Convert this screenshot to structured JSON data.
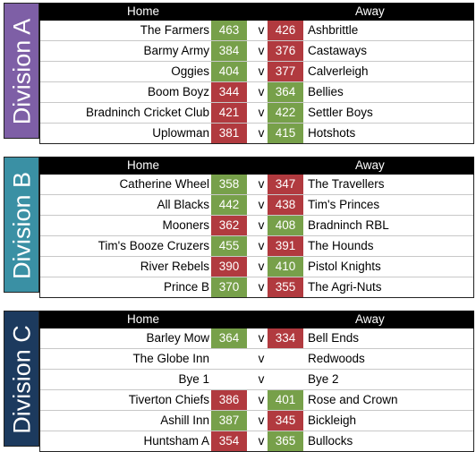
{
  "header": {
    "home": "Home",
    "away": "Away"
  },
  "divisions": [
    {
      "name": "Division A",
      "color": "#7e5fa6",
      "matches": [
        {
          "home": "The Farmers",
          "home_score": "463",
          "vs": "v",
          "away_score": "426",
          "away": "Ashbrittle",
          "home_result": "win",
          "away_result": "lose"
        },
        {
          "home": "Barmy Army",
          "home_score": "384",
          "vs": "v",
          "away_score": "376",
          "away": "Castaways",
          "home_result": "win",
          "away_result": "lose"
        },
        {
          "home": "Oggies",
          "home_score": "404",
          "vs": "v",
          "away_score": "377",
          "away": "Calverleigh",
          "home_result": "win",
          "away_result": "lose"
        },
        {
          "home": "Boom Boyz",
          "home_score": "344",
          "vs": "v",
          "away_score": "364",
          "away": "Bellies",
          "home_result": "lose",
          "away_result": "win"
        },
        {
          "home": "Bradninch Cricket Club",
          "home_score": "421",
          "vs": "v",
          "away_score": "422",
          "away": "Settler Boys",
          "home_result": "lose",
          "away_result": "win"
        },
        {
          "home": "Uplowman",
          "home_score": "381",
          "vs": "v",
          "away_score": "415",
          "away": "Hotshots",
          "home_result": "lose",
          "away_result": "win"
        }
      ]
    },
    {
      "name": "Division B",
      "color": "#3a90a4",
      "matches": [
        {
          "home": "Catherine Wheel",
          "home_score": "358",
          "vs": "v",
          "away_score": "347",
          "away": "The Travellers",
          "home_result": "win",
          "away_result": "lose"
        },
        {
          "home": "All Blacks",
          "home_score": "442",
          "vs": "v",
          "away_score": "438",
          "away": "Tim's Princes",
          "home_result": "win",
          "away_result": "lose"
        },
        {
          "home": "Mooners",
          "home_score": "362",
          "vs": "v",
          "away_score": "408",
          "away": "Bradninch RBL",
          "home_result": "lose",
          "away_result": "win"
        },
        {
          "home": "Tim's Booze Cruzers",
          "home_score": "455",
          "vs": "v",
          "away_score": "391",
          "away": "The Hounds",
          "home_result": "win",
          "away_result": "lose"
        },
        {
          "home": "River Rebels",
          "home_score": "390",
          "vs": "v",
          "away_score": "410",
          "away": "Pistol Knights",
          "home_result": "lose",
          "away_result": "win"
        },
        {
          "home": "Prince B",
          "home_score": "370",
          "vs": "v",
          "away_score": "355",
          "away": "The Agri-Nuts",
          "home_result": "win",
          "away_result": "lose"
        }
      ]
    },
    {
      "name": "Division C",
      "color": "#1c3a5e",
      "matches": [
        {
          "home": "Barley Mow",
          "home_score": "364",
          "vs": "v",
          "away_score": "334",
          "away": "Bell Ends",
          "home_result": "win",
          "away_result": "lose"
        },
        {
          "home": "The Globe Inn",
          "home_score": "",
          "vs": "v",
          "away_score": "",
          "away": "Redwoods",
          "home_result": "none",
          "away_result": "none"
        },
        {
          "home": "Bye 1",
          "home_score": "",
          "vs": "v",
          "away_score": "",
          "away": "Bye 2",
          "home_result": "none",
          "away_result": "none"
        },
        {
          "home": "Tiverton Chiefs",
          "home_score": "386",
          "vs": "v",
          "away_score": "401",
          "away": "Rose and Crown",
          "home_result": "lose",
          "away_result": "win"
        },
        {
          "home": "Ashill Inn",
          "home_score": "387",
          "vs": "v",
          "away_score": "345",
          "away": "Bickleigh",
          "home_result": "win",
          "away_result": "lose"
        },
        {
          "home": "Huntsham A",
          "home_score": "354",
          "vs": "v",
          "away_score": "365",
          "away": "Bullocks",
          "home_result": "lose",
          "away_result": "win"
        }
      ]
    }
  ]
}
